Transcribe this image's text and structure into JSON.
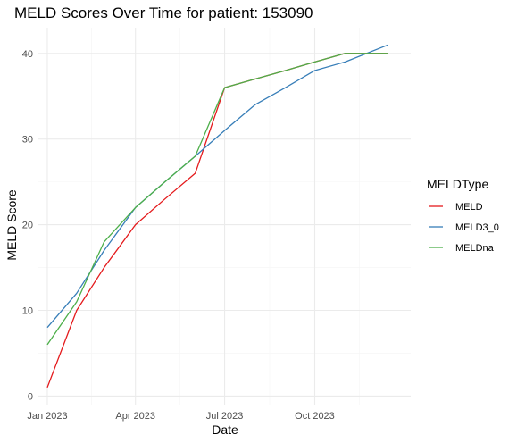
{
  "chart_data": {
    "type": "line",
    "title": "MELD Scores Over Time for patient: 153090",
    "xlabel": "Date",
    "ylabel": "MELD Score",
    "x_type": "date",
    "xlim": [
      "2022-12-22",
      "2024-01-07"
    ],
    "ylim": [
      -1,
      43
    ],
    "x_ticks": [
      {
        "value": "2023-01-01",
        "label": "Jan 2023"
      },
      {
        "value": "2023-04-01",
        "label": "Apr 2023"
      },
      {
        "value": "2023-07-01",
        "label": "Jul 2023"
      },
      {
        "value": "2023-10-01",
        "label": "Oct 2023"
      }
    ],
    "y_ticks": [
      0,
      10,
      20,
      30,
      40
    ],
    "grid": true,
    "legend": {
      "title": "MELDType",
      "position": "right"
    },
    "series": [
      {
        "name": "MELD",
        "color": "#E41A1C",
        "points": [
          {
            "x": "2023-01-01",
            "y": 1
          },
          {
            "x": "2023-01-31",
            "y": 10
          },
          {
            "x": "2023-02-28",
            "y": 15
          },
          {
            "x": "2023-04-01",
            "y": 20
          },
          {
            "x": "2023-05-01",
            "y": 23
          },
          {
            "x": "2023-06-01",
            "y": 26
          },
          {
            "x": "2023-07-01",
            "y": 36
          },
          {
            "x": "2023-08-01",
            "y": 37
          },
          {
            "x": "2023-09-01",
            "y": 38
          },
          {
            "x": "2023-10-01",
            "y": 39
          },
          {
            "x": "2023-11-01",
            "y": 40
          },
          {
            "x": "2023-12-01",
            "y": 40
          },
          {
            "x": "2023-12-15",
            "y": 40
          }
        ]
      },
      {
        "name": "MELD3_0",
        "color": "#377EB8",
        "points": [
          {
            "x": "2023-01-01",
            "y": 8
          },
          {
            "x": "2023-01-31",
            "y": 12
          },
          {
            "x": "2023-02-28",
            "y": 17
          },
          {
            "x": "2023-04-01",
            "y": 22
          },
          {
            "x": "2023-05-01",
            "y": 25
          },
          {
            "x": "2023-06-01",
            "y": 28
          },
          {
            "x": "2023-07-01",
            "y": 31
          },
          {
            "x": "2023-08-01",
            "y": 34
          },
          {
            "x": "2023-09-01",
            "y": 36
          },
          {
            "x": "2023-10-01",
            "y": 38
          },
          {
            "x": "2023-11-01",
            "y": 39
          },
          {
            "x": "2023-12-15",
            "y": 41
          }
        ]
      },
      {
        "name": "MELDna",
        "color": "#4DAF4A",
        "points": [
          {
            "x": "2023-01-01",
            "y": 6
          },
          {
            "x": "2023-01-31",
            "y": 11
          },
          {
            "x": "2023-02-28",
            "y": 18
          },
          {
            "x": "2023-04-01",
            "y": 22
          },
          {
            "x": "2023-05-01",
            "y": 25
          },
          {
            "x": "2023-06-01",
            "y": 28
          },
          {
            "x": "2023-07-01",
            "y": 36
          },
          {
            "x": "2023-08-01",
            "y": 37
          },
          {
            "x": "2023-09-01",
            "y": 38
          },
          {
            "x": "2023-10-01",
            "y": 39
          },
          {
            "x": "2023-11-01",
            "y": 40
          },
          {
            "x": "2023-12-01",
            "y": 40
          },
          {
            "x": "2023-12-15",
            "y": 40
          }
        ]
      }
    ]
  }
}
